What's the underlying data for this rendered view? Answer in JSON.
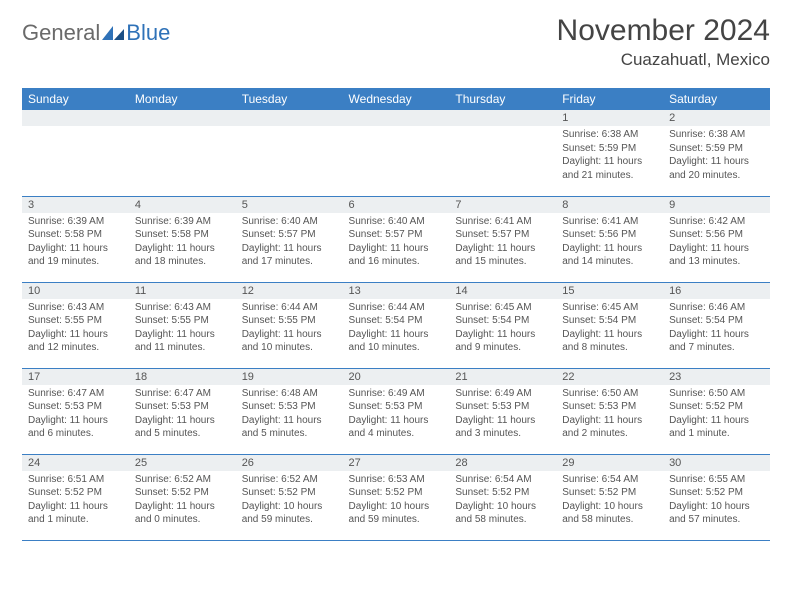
{
  "colors": {
    "header_bg": "#3b7fc4",
    "header_text": "#ffffff",
    "daynum_bg": "#eceff1",
    "body_text": "#555555",
    "border": "#3b7fc4",
    "logo_gray": "#6a6a6a",
    "logo_blue": "#2f72b8",
    "background": "#ffffff"
  },
  "typography": {
    "title_fontsize": 30,
    "location_fontsize": 17,
    "dayheader_fontsize": 12,
    "daynum_fontsize": 11,
    "body_fontsize": 10,
    "font_family": "Arial"
  },
  "logo": {
    "text1": "General",
    "text2": "Blue"
  },
  "title": "November 2024",
  "location": "Cuazahuatl, Mexico",
  "day_headers": [
    "Sunday",
    "Monday",
    "Tuesday",
    "Wednesday",
    "Thursday",
    "Friday",
    "Saturday"
  ],
  "weeks": [
    [
      {
        "num": "",
        "lines": []
      },
      {
        "num": "",
        "lines": []
      },
      {
        "num": "",
        "lines": []
      },
      {
        "num": "",
        "lines": []
      },
      {
        "num": "",
        "lines": []
      },
      {
        "num": "1",
        "lines": [
          "Sunrise: 6:38 AM",
          "Sunset: 5:59 PM",
          "Daylight: 11 hours and 21 minutes."
        ]
      },
      {
        "num": "2",
        "lines": [
          "Sunrise: 6:38 AM",
          "Sunset: 5:59 PM",
          "Daylight: 11 hours and 20 minutes."
        ]
      }
    ],
    [
      {
        "num": "3",
        "lines": [
          "Sunrise: 6:39 AM",
          "Sunset: 5:58 PM",
          "Daylight: 11 hours and 19 minutes."
        ]
      },
      {
        "num": "4",
        "lines": [
          "Sunrise: 6:39 AM",
          "Sunset: 5:58 PM",
          "Daylight: 11 hours and 18 minutes."
        ]
      },
      {
        "num": "5",
        "lines": [
          "Sunrise: 6:40 AM",
          "Sunset: 5:57 PM",
          "Daylight: 11 hours and 17 minutes."
        ]
      },
      {
        "num": "6",
        "lines": [
          "Sunrise: 6:40 AM",
          "Sunset: 5:57 PM",
          "Daylight: 11 hours and 16 minutes."
        ]
      },
      {
        "num": "7",
        "lines": [
          "Sunrise: 6:41 AM",
          "Sunset: 5:57 PM",
          "Daylight: 11 hours and 15 minutes."
        ]
      },
      {
        "num": "8",
        "lines": [
          "Sunrise: 6:41 AM",
          "Sunset: 5:56 PM",
          "Daylight: 11 hours and 14 minutes."
        ]
      },
      {
        "num": "9",
        "lines": [
          "Sunrise: 6:42 AM",
          "Sunset: 5:56 PM",
          "Daylight: 11 hours and 13 minutes."
        ]
      }
    ],
    [
      {
        "num": "10",
        "lines": [
          "Sunrise: 6:43 AM",
          "Sunset: 5:55 PM",
          "Daylight: 11 hours and 12 minutes."
        ]
      },
      {
        "num": "11",
        "lines": [
          "Sunrise: 6:43 AM",
          "Sunset: 5:55 PM",
          "Daylight: 11 hours and 11 minutes."
        ]
      },
      {
        "num": "12",
        "lines": [
          "Sunrise: 6:44 AM",
          "Sunset: 5:55 PM",
          "Daylight: 11 hours and 10 minutes."
        ]
      },
      {
        "num": "13",
        "lines": [
          "Sunrise: 6:44 AM",
          "Sunset: 5:54 PM",
          "Daylight: 11 hours and 10 minutes."
        ]
      },
      {
        "num": "14",
        "lines": [
          "Sunrise: 6:45 AM",
          "Sunset: 5:54 PM",
          "Daylight: 11 hours and 9 minutes."
        ]
      },
      {
        "num": "15",
        "lines": [
          "Sunrise: 6:45 AM",
          "Sunset: 5:54 PM",
          "Daylight: 11 hours and 8 minutes."
        ]
      },
      {
        "num": "16",
        "lines": [
          "Sunrise: 6:46 AM",
          "Sunset: 5:54 PM",
          "Daylight: 11 hours and 7 minutes."
        ]
      }
    ],
    [
      {
        "num": "17",
        "lines": [
          "Sunrise: 6:47 AM",
          "Sunset: 5:53 PM",
          "Daylight: 11 hours and 6 minutes."
        ]
      },
      {
        "num": "18",
        "lines": [
          "Sunrise: 6:47 AM",
          "Sunset: 5:53 PM",
          "Daylight: 11 hours and 5 minutes."
        ]
      },
      {
        "num": "19",
        "lines": [
          "Sunrise: 6:48 AM",
          "Sunset: 5:53 PM",
          "Daylight: 11 hours and 5 minutes."
        ]
      },
      {
        "num": "20",
        "lines": [
          "Sunrise: 6:49 AM",
          "Sunset: 5:53 PM",
          "Daylight: 11 hours and 4 minutes."
        ]
      },
      {
        "num": "21",
        "lines": [
          "Sunrise: 6:49 AM",
          "Sunset: 5:53 PM",
          "Daylight: 11 hours and 3 minutes."
        ]
      },
      {
        "num": "22",
        "lines": [
          "Sunrise: 6:50 AM",
          "Sunset: 5:53 PM",
          "Daylight: 11 hours and 2 minutes."
        ]
      },
      {
        "num": "23",
        "lines": [
          "Sunrise: 6:50 AM",
          "Sunset: 5:52 PM",
          "Daylight: 11 hours and 1 minute."
        ]
      }
    ],
    [
      {
        "num": "24",
        "lines": [
          "Sunrise: 6:51 AM",
          "Sunset: 5:52 PM",
          "Daylight: 11 hours and 1 minute."
        ]
      },
      {
        "num": "25",
        "lines": [
          "Sunrise: 6:52 AM",
          "Sunset: 5:52 PM",
          "Daylight: 11 hours and 0 minutes."
        ]
      },
      {
        "num": "26",
        "lines": [
          "Sunrise: 6:52 AM",
          "Sunset: 5:52 PM",
          "Daylight: 10 hours and 59 minutes."
        ]
      },
      {
        "num": "27",
        "lines": [
          "Sunrise: 6:53 AM",
          "Sunset: 5:52 PM",
          "Daylight: 10 hours and 59 minutes."
        ]
      },
      {
        "num": "28",
        "lines": [
          "Sunrise: 6:54 AM",
          "Sunset: 5:52 PM",
          "Daylight: 10 hours and 58 minutes."
        ]
      },
      {
        "num": "29",
        "lines": [
          "Sunrise: 6:54 AM",
          "Sunset: 5:52 PM",
          "Daylight: 10 hours and 58 minutes."
        ]
      },
      {
        "num": "30",
        "lines": [
          "Sunrise: 6:55 AM",
          "Sunset: 5:52 PM",
          "Daylight: 10 hours and 57 minutes."
        ]
      }
    ]
  ]
}
